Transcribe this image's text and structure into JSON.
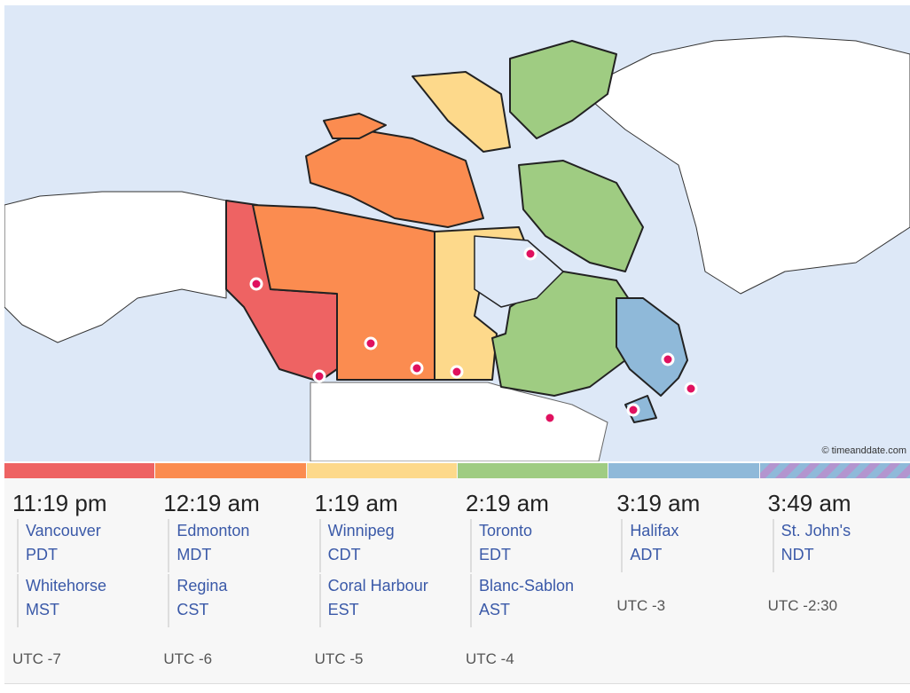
{
  "map": {
    "credit": "© timeanddate.com"
  },
  "zones": [
    {
      "time": "11:19 pm",
      "groups": [
        {
          "city": "Vancouver",
          "abbr": "PDT"
        },
        {
          "city": "Whitehorse",
          "abbr": "MST"
        }
      ],
      "utc": "UTC -7"
    },
    {
      "time": "12:19 am",
      "groups": [
        {
          "city": "Edmonton",
          "abbr": "MDT"
        },
        {
          "city": "Regina",
          "abbr": "CST"
        }
      ],
      "utc": "UTC -6"
    },
    {
      "time": "1:19 am",
      "groups": [
        {
          "city": "Winnipeg",
          "abbr": "CDT"
        },
        {
          "city": "Coral Harbour",
          "abbr": "EST"
        }
      ],
      "utc": "UTC -5"
    },
    {
      "time": "2:19 am",
      "groups": [
        {
          "city": "Toronto",
          "abbr": "EDT"
        },
        {
          "city": "Blanc-Sablon",
          "abbr": "AST"
        }
      ],
      "utc": "UTC -4"
    },
    {
      "time": "3:19 am",
      "groups": [
        {
          "city": "Halifax",
          "abbr": "ADT"
        }
      ],
      "utc": "UTC -3"
    },
    {
      "time": "3:49 am",
      "groups": [
        {
          "city": "St. John's",
          "abbr": "NDT"
        }
      ],
      "utc": "UTC -2:30"
    }
  ]
}
